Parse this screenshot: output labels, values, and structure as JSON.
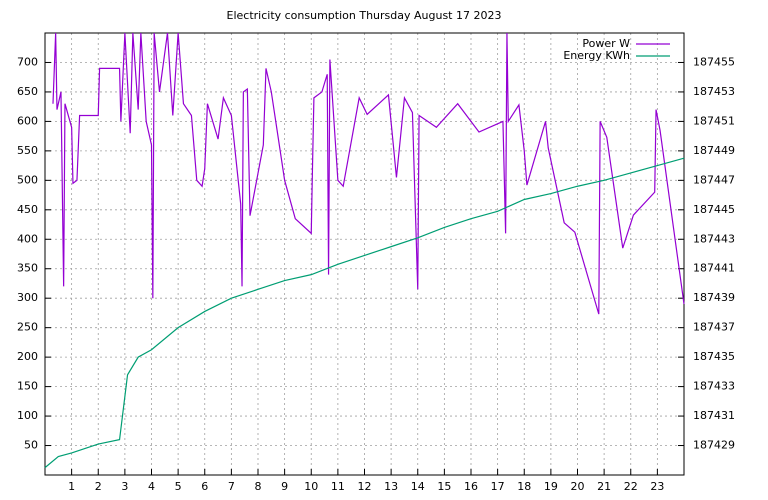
{
  "chart_data": {
    "type": "line",
    "title": "Electricity consumption Thursday August 17 2023",
    "xlim": [
      0,
      24
    ],
    "xticks": [
      1,
      2,
      3,
      4,
      5,
      6,
      7,
      8,
      9,
      10,
      11,
      12,
      13,
      14,
      15,
      16,
      17,
      18,
      19,
      20,
      21,
      22,
      23
    ],
    "ylim": [
      0,
      750
    ],
    "yticks": [
      50,
      100,
      150,
      200,
      250,
      300,
      350,
      400,
      450,
      500,
      550,
      600,
      650,
      700
    ],
    "y2lim": [
      187427,
      187457
    ],
    "y2ticks": [
      187429,
      187431,
      187433,
      187435,
      187437,
      187439,
      187441,
      187443,
      187445,
      187447,
      187449,
      187451,
      187453,
      187455
    ],
    "grid": true,
    "legend": "top-right",
    "series": [
      {
        "name": "Power W",
        "color": "#9400d3",
        "x": [
          0.3,
          0.4,
          0.45,
          0.6,
          0.7,
          0.75,
          1.0,
          1.05,
          1.2,
          1.3,
          2.0,
          2.05,
          2.8,
          2.85,
          3.0,
          3.2,
          3.3,
          3.5,
          3.6,
          3.8,
          4.0,
          4.05,
          4.1,
          4.3,
          4.6,
          4.8,
          5.0,
          5.2,
          5.5,
          5.7,
          5.9,
          6.0,
          6.1,
          6.3,
          6.5,
          6.7,
          7.0,
          7.35,
          7.4,
          7.45,
          7.6,
          7.7,
          8.2,
          8.3,
          8.5,
          9.0,
          9.4,
          10.0,
          10.05,
          10.1,
          10.4,
          10.6,
          10.65,
          10.7,
          11.0,
          11.2,
          11.8,
          12.1,
          12.9,
          13.2,
          13.5,
          13.8,
          14.0,
          14.05,
          14.7,
          15.5,
          16.3,
          17.2,
          17.3,
          17.35,
          17.4,
          17.8,
          18.0,
          18.1,
          18.8,
          18.9,
          19.5,
          19.9,
          20.8,
          20.85,
          21.1,
          21.7,
          22.1,
          22.9,
          22.95,
          23.1,
          24.0
        ],
        "values": [
          630,
          750,
          620,
          650,
          320,
          630,
          590,
          495,
          500,
          610,
          610,
          690,
          690,
          600,
          750,
          580,
          750,
          620,
          750,
          600,
          560,
          300,
          750,
          650,
          750,
          610,
          750,
          630,
          610,
          500,
          490,
          520,
          630,
          600,
          570,
          640,
          610,
          460,
          320,
          650,
          655,
          440,
          560,
          690,
          650,
          500,
          435,
          410,
          530,
          640,
          650,
          680,
          340,
          705,
          500,
          490,
          640,
          612,
          645,
          505,
          640,
          615,
          315,
          610,
          590,
          630,
          582,
          600,
          410,
          750,
          600,
          628,
          550,
          492,
          600,
          555,
          428,
          412,
          273,
          600,
          573,
          385,
          441,
          480,
          620,
          585,
          290
        ]
      },
      {
        "name": "Energy KWh",
        "color": "#009e73",
        "axis": "y2",
        "x": [
          0,
          0.5,
          1,
          2,
          2.8,
          3.1,
          3.5,
          4,
          5,
          6,
          7,
          8,
          9,
          10,
          11,
          12,
          13,
          14,
          15,
          16,
          17,
          18,
          19,
          20,
          21,
          22,
          23,
          24
        ],
        "values": [
          187427.5,
          187428.25,
          187428.5,
          187429.1,
          187429.4,
          187433.8,
          187435.0,
          187435.5,
          187437,
          187438.1,
          187439,
          187439.6,
          187440.2,
          187440.6,
          187441.3,
          187441.9,
          187442.5,
          187443.1,
          187443.8,
          187444.4,
          187444.9,
          187445.7,
          187446.1,
          187446.6,
          187447,
          187447.5,
          187448,
          187448.5
        ]
      }
    ]
  }
}
